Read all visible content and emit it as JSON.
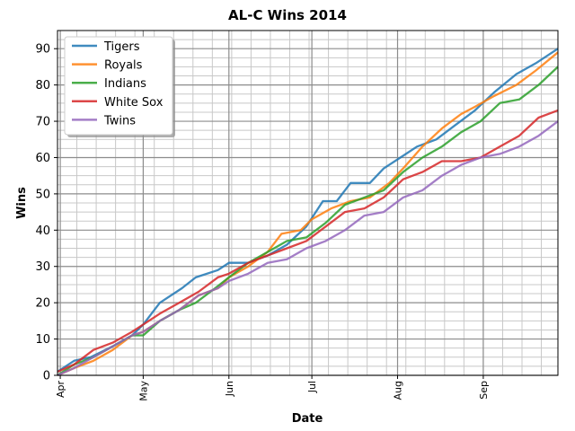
{
  "chart_data": {
    "type": "line",
    "title": "AL-C Wins 2014",
    "xlabel": "Date",
    "ylabel": "Wins",
    "x_type": "date",
    "xlim": [
      "2014-03-31",
      "2014-09-28"
    ],
    "ylim": [
      0,
      95
    ],
    "x_ticks": [
      {
        "date": "2014-04-01",
        "label": "Apr"
      },
      {
        "date": "2014-05-01",
        "label": "May"
      },
      {
        "date": "2014-06-01",
        "label": "Jun"
      },
      {
        "date": "2014-07-01",
        "label": "Jul"
      },
      {
        "date": "2014-08-01",
        "label": "Aug"
      },
      {
        "date": "2014-09-01",
        "label": "Sep"
      }
    ],
    "y_ticks": [
      0,
      10,
      20,
      30,
      40,
      50,
      60,
      70,
      80,
      90
    ],
    "grid": true,
    "legend_position": "top-left",
    "series": [
      {
        "name": "Tigers",
        "color": "#1f77b4",
        "points": [
          [
            "2014-03-31",
            1
          ],
          [
            "2014-04-06",
            4
          ],
          [
            "2014-04-12",
            5
          ],
          [
            "2014-04-20",
            8
          ],
          [
            "2014-04-27",
            11
          ],
          [
            "2014-05-01",
            14
          ],
          [
            "2014-05-07",
            20
          ],
          [
            "2014-05-15",
            24
          ],
          [
            "2014-05-20",
            27
          ],
          [
            "2014-05-28",
            29
          ],
          [
            "2014-06-01",
            31
          ],
          [
            "2014-06-08",
            31
          ],
          [
            "2014-06-15",
            33
          ],
          [
            "2014-06-22",
            36
          ],
          [
            "2014-06-29",
            41
          ],
          [
            "2014-07-05",
            48
          ],
          [
            "2014-07-10",
            48
          ],
          [
            "2014-07-15",
            53
          ],
          [
            "2014-07-22",
            53
          ],
          [
            "2014-07-27",
            57
          ],
          [
            "2014-08-02",
            60
          ],
          [
            "2014-08-08",
            63
          ],
          [
            "2014-08-15",
            65
          ],
          [
            "2014-08-22",
            69
          ],
          [
            "2014-08-29",
            73
          ],
          [
            "2014-09-05",
            78
          ],
          [
            "2014-09-13",
            83
          ],
          [
            "2014-09-20",
            86
          ],
          [
            "2014-09-28",
            90
          ]
        ]
      },
      {
        "name": "Royals",
        "color": "#ff7f0e",
        "points": [
          [
            "2014-03-31",
            0
          ],
          [
            "2014-04-06",
            2
          ],
          [
            "2014-04-13",
            4
          ],
          [
            "2014-04-20",
            7
          ],
          [
            "2014-04-27",
            11
          ],
          [
            "2014-05-01",
            12
          ],
          [
            "2014-05-07",
            15
          ],
          [
            "2014-05-14",
            18
          ],
          [
            "2014-05-21",
            22
          ],
          [
            "2014-05-28",
            24
          ],
          [
            "2014-06-01",
            27
          ],
          [
            "2014-06-08",
            30
          ],
          [
            "2014-06-15",
            34
          ],
          [
            "2014-06-20",
            39
          ],
          [
            "2014-06-27",
            40
          ],
          [
            "2014-07-01",
            43
          ],
          [
            "2014-07-08",
            46
          ],
          [
            "2014-07-15",
            48
          ],
          [
            "2014-07-22",
            49
          ],
          [
            "2014-07-29",
            53
          ],
          [
            "2014-08-03",
            57
          ],
          [
            "2014-08-10",
            63
          ],
          [
            "2014-08-17",
            68
          ],
          [
            "2014-08-24",
            72
          ],
          [
            "2014-08-29",
            74
          ],
          [
            "2014-09-05",
            77
          ],
          [
            "2014-09-13",
            80
          ],
          [
            "2014-09-20",
            84
          ],
          [
            "2014-09-28",
            89
          ]
        ]
      },
      {
        "name": "Indians",
        "color": "#2ca02c",
        "points": [
          [
            "2014-03-31",
            0
          ],
          [
            "2014-04-06",
            3
          ],
          [
            "2014-04-13",
            5
          ],
          [
            "2014-04-20",
            8
          ],
          [
            "2014-04-27",
            11
          ],
          [
            "2014-05-01",
            11
          ],
          [
            "2014-05-07",
            15
          ],
          [
            "2014-05-14",
            18
          ],
          [
            "2014-05-20",
            20
          ],
          [
            "2014-05-27",
            24
          ],
          [
            "2014-06-01",
            27
          ],
          [
            "2014-06-08",
            31
          ],
          [
            "2014-06-15",
            34
          ],
          [
            "2014-06-22",
            37
          ],
          [
            "2014-06-29",
            38
          ],
          [
            "2014-07-06",
            42
          ],
          [
            "2014-07-13",
            47
          ],
          [
            "2014-07-20",
            49
          ],
          [
            "2014-07-27",
            51
          ],
          [
            "2014-08-03",
            56
          ],
          [
            "2014-08-10",
            60
          ],
          [
            "2014-08-17",
            63
          ],
          [
            "2014-08-24",
            67
          ],
          [
            "2014-08-31",
            70
          ],
          [
            "2014-09-07",
            75
          ],
          [
            "2014-09-14",
            76
          ],
          [
            "2014-09-21",
            80
          ],
          [
            "2014-09-28",
            85
          ]
        ]
      },
      {
        "name": "White Sox",
        "color": "#d62728",
        "points": [
          [
            "2014-03-31",
            1
          ],
          [
            "2014-04-06",
            3
          ],
          [
            "2014-04-13",
            7
          ],
          [
            "2014-04-20",
            9
          ],
          [
            "2014-04-27",
            12
          ],
          [
            "2014-05-01",
            14
          ],
          [
            "2014-05-07",
            17
          ],
          [
            "2014-05-14",
            20
          ],
          [
            "2014-05-21",
            23
          ],
          [
            "2014-05-28",
            27
          ],
          [
            "2014-06-01",
            28
          ],
          [
            "2014-06-08",
            31
          ],
          [
            "2014-06-15",
            33
          ],
          [
            "2014-06-22",
            35
          ],
          [
            "2014-06-29",
            37
          ],
          [
            "2014-07-06",
            41
          ],
          [
            "2014-07-13",
            45
          ],
          [
            "2014-07-20",
            46
          ],
          [
            "2014-07-27",
            49
          ],
          [
            "2014-08-03",
            54
          ],
          [
            "2014-08-10",
            56
          ],
          [
            "2014-08-17",
            59
          ],
          [
            "2014-08-24",
            59
          ],
          [
            "2014-08-31",
            60
          ],
          [
            "2014-09-07",
            63
          ],
          [
            "2014-09-14",
            66
          ],
          [
            "2014-09-21",
            71
          ],
          [
            "2014-09-28",
            73
          ]
        ]
      },
      {
        "name": "Twins",
        "color": "#9467bd",
        "points": [
          [
            "2014-03-31",
            0
          ],
          [
            "2014-04-06",
            2
          ],
          [
            "2014-04-13",
            5
          ],
          [
            "2014-04-20",
            8
          ],
          [
            "2014-04-27",
            11
          ],
          [
            "2014-05-01",
            12
          ],
          [
            "2014-05-07",
            15
          ],
          [
            "2014-05-14",
            18
          ],
          [
            "2014-05-21",
            22
          ],
          [
            "2014-05-28",
            24
          ],
          [
            "2014-06-01",
            26
          ],
          [
            "2014-06-08",
            28
          ],
          [
            "2014-06-15",
            31
          ],
          [
            "2014-06-22",
            32
          ],
          [
            "2014-06-29",
            35
          ],
          [
            "2014-07-06",
            37
          ],
          [
            "2014-07-13",
            40
          ],
          [
            "2014-07-20",
            44
          ],
          [
            "2014-07-27",
            45
          ],
          [
            "2014-08-03",
            49
          ],
          [
            "2014-08-10",
            51
          ],
          [
            "2014-08-17",
            55
          ],
          [
            "2014-08-24",
            58
          ],
          [
            "2014-08-31",
            60
          ],
          [
            "2014-09-07",
            61
          ],
          [
            "2014-09-14",
            63
          ],
          [
            "2014-09-21",
            66
          ],
          [
            "2014-09-28",
            70
          ]
        ]
      }
    ]
  }
}
